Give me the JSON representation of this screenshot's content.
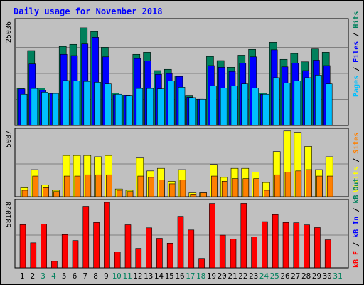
{
  "chart_data": {
    "type": "bar",
    "title": "Daily usage for November 2018",
    "categories": [
      "1",
      "2",
      "3",
      "4",
      "5",
      "6",
      "7",
      "8",
      "9",
      "10",
      "11",
      "12",
      "13",
      "14",
      "15",
      "16",
      "17",
      "18",
      "19",
      "20",
      "21",
      "22",
      "23",
      "24",
      "25",
      "26",
      "27",
      "28",
      "29",
      "30",
      "31"
    ],
    "weekend_days": [
      "3",
      "4",
      "10",
      "11",
      "17",
      "18",
      "24",
      "25",
      "31"
    ],
    "colors": {
      "hits": "#00805c",
      "files": "#0000ff",
      "pages": "#00c0ff",
      "visits": "#ffff00",
      "sites": "#ff8000",
      "kbytes": "#ff0000",
      "weekday_label": "#000000",
      "weekend_label": "#00805c",
      "title": "#0000ff"
    },
    "panels": [
      {
        "id": "top",
        "ymax_label": "25036",
        "ymax": 25036,
        "legend": [
          {
            "text": "Pages",
            "color": "#00c0ff"
          },
          {
            "text": " / ",
            "color": "#000000"
          },
          {
            "text": "Files",
            "color": "#0000ff"
          },
          {
            "text": " / ",
            "color": "#000000"
          },
          {
            "text": "Hits",
            "color": "#00805c"
          }
        ],
        "series": [
          {
            "name": "Hits",
            "color": "#00805c",
            "values": [
              9000,
              18000,
              9000,
              7700,
              19000,
              19500,
              23500,
              22600,
              18800,
              7800,
              7300,
              17100,
              17600,
              13200,
              13500,
              11900,
              7100,
              6300,
              16600,
              15600,
              14000,
              16900,
              18300,
              7800,
              20000,
              15900,
              17300,
              15300,
              18400,
              17600,
              0
            ]
          },
          {
            "name": "Files",
            "color": "#0000ff",
            "values": [
              8800,
              14800,
              8500,
              7700,
              17100,
              16800,
              19600,
              21200,
              16500,
              7400,
              7200,
              16100,
              15500,
              12300,
              12500,
              11800,
              6800,
              6300,
              14400,
              14000,
              13000,
              15000,
              16500,
              7500,
              18200,
              14100,
              15000,
              13200,
              15700,
              14400,
              0
            ]
          },
          {
            "name": "Pages",
            "color": "#00c0ff",
            "values": [
              7500,
              8900,
              8000,
              7700,
              10800,
              10700,
              10600,
              10400,
              10000,
              7500,
              7100,
              8900,
              8900,
              8800,
              10700,
              9200,
              6700,
              6300,
              9500,
              9000,
              9500,
              10000,
              9000,
              7500,
              11500,
              10200,
              10700,
              11500,
              12100,
              10000,
              0
            ]
          }
        ]
      },
      {
        "id": "middle",
        "ymax_label": "5087",
        "ymax": 5087,
        "legend": [
          {
            "text": "Visits",
            "color": "#ffff00"
          },
          {
            "text": " / ",
            "color": "#000000"
          },
          {
            "text": "Sites",
            "color": "#ff8000"
          }
        ],
        "series": [
          {
            "name": "Visits",
            "color": "#ffff00",
            "values": [
              700,
              2100,
              900,
              500,
              3200,
              3200,
              3200,
              3100,
              3200,
              600,
              500,
              3000,
              2000,
              2200,
              1200,
              2100,
              300,
              300,
              2500,
              1500,
              2200,
              2200,
              1900,
              1100,
              3500,
              5100,
              5000,
              3900,
              2100,
              3100,
              0
            ]
          },
          {
            "name": "Sites",
            "color": "#ff8000",
            "values": [
              500,
              1600,
              700,
              400,
              1600,
              1600,
              1700,
              1700,
              1700,
              500,
              400,
              1600,
              1500,
              1300,
              1000,
              1300,
              200,
              300,
              1600,
              1200,
              1400,
              1400,
              1400,
              500,
              1700,
              1900,
              2000,
              2100,
              1600,
              1600,
              0
            ]
          }
        ]
      },
      {
        "id": "bottom",
        "ymax_label": "581028",
        "ymax": 581028,
        "legend": [
          {
            "text": "kB F",
            "color": "#ff0000"
          },
          {
            "text": " / ",
            "color": "#000000"
          },
          {
            "text": "kB In",
            "color": "#0000ff"
          },
          {
            "text": " / ",
            "color": "#000000"
          },
          {
            "text": "kB Out",
            "color": "#00805c"
          }
        ],
        "series": [
          {
            "name": "kB F",
            "color": "#ff0000",
            "values": [
              383000,
              222000,
              389000,
              58000,
              295000,
              242000,
              546000,
              402000,
              581000,
              141000,
              382000,
              173000,
              355000,
              262000,
              219000,
              457000,
              336000,
              84000,
              571000,
              290000,
              257000,
              572000,
              274000,
              410000,
              472000,
              402000,
              400000,
              381000,
              357000,
              249000,
              0
            ]
          }
        ]
      }
    ]
  }
}
